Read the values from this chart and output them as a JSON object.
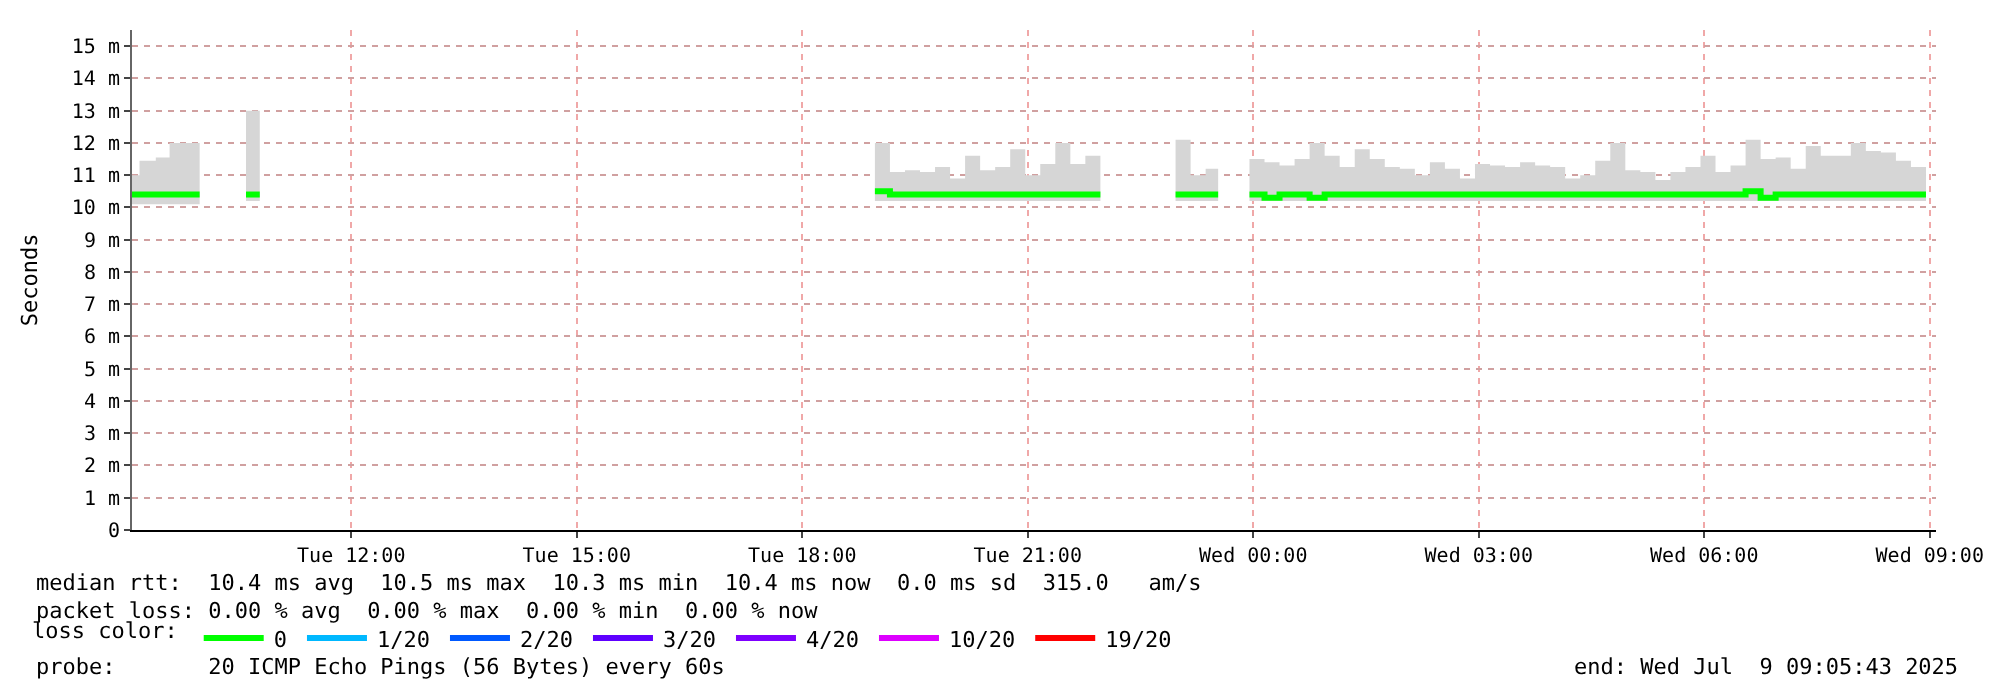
{
  "chart_data": {
    "type": "step",
    "ylabel": "Seconds",
    "x": [
      "2025-07-08T09:05",
      "2025-07-08T09:11",
      "2025-07-08T09:24",
      "2025-07-08T09:35",
      "2025-07-08T09:59",
      "2025-07-08T10:20",
      "2025-07-08T10:36",
      "2025-07-08T10:47",
      "2025-07-08T14:00",
      "2025-07-08T18:58",
      "2025-07-08T19:10",
      "2025-07-08T19:22",
      "2025-07-08T19:34",
      "2025-07-08T19:46",
      "2025-07-08T19:58",
      "2025-07-08T20:10",
      "2025-07-08T20:22",
      "2025-07-08T20:34",
      "2025-07-08T20:46",
      "2025-07-08T20:58",
      "2025-07-08T21:10",
      "2025-07-08T21:22",
      "2025-07-08T21:34",
      "2025-07-08T21:46",
      "2025-07-08T21:58",
      "2025-07-08T22:20",
      "2025-07-08T22:58",
      "2025-07-08T23:10",
      "2025-07-08T23:22",
      "2025-07-08T23:32",
      "2025-07-08T23:45",
      "2025-07-08T23:57",
      "2025-07-09T00:09",
      "2025-07-09T00:21",
      "2025-07-09T00:33",
      "2025-07-09T00:45",
      "2025-07-09T00:57",
      "2025-07-09T01:09",
      "2025-07-09T01:21",
      "2025-07-09T01:33",
      "2025-07-09T01:45",
      "2025-07-09T01:57",
      "2025-07-09T02:09",
      "2025-07-09T02:21",
      "2025-07-09T02:33",
      "2025-07-09T02:45",
      "2025-07-09T02:57",
      "2025-07-09T03:09",
      "2025-07-09T03:21",
      "2025-07-09T03:33",
      "2025-07-09T03:45",
      "2025-07-09T03:57",
      "2025-07-09T04:09",
      "2025-07-09T04:21",
      "2025-07-09T04:33",
      "2025-07-09T04:45",
      "2025-07-09T04:57",
      "2025-07-09T05:09",
      "2025-07-09T05:21",
      "2025-07-09T05:33",
      "2025-07-09T05:45",
      "2025-07-09T05:57",
      "2025-07-09T06:09",
      "2025-07-09T06:21",
      "2025-07-09T06:33",
      "2025-07-09T06:45",
      "2025-07-09T06:57",
      "2025-07-09T07:09",
      "2025-07-09T07:21",
      "2025-07-09T07:33",
      "2025-07-09T07:45",
      "2025-07-09T07:57",
      "2025-07-09T08:09",
      "2025-07-09T08:21",
      "2025-07-09T08:33",
      "2025-07-09T08:45",
      "2025-07-09T08:57"
    ],
    "series": [
      {
        "name": "0",
        "color": "#00ff00",
        "values": [
          10.4,
          10.4,
          10.4,
          10.4,
          10.4,
          null,
          10.4,
          10.4,
          null,
          10.5,
          10.4,
          10.4,
          10.4,
          10.4,
          10.4,
          10.4,
          10.4,
          10.4,
          10.4,
          10.4,
          10.4,
          10.4,
          10.4,
          10.4,
          10.4,
          null,
          10.4,
          10.4,
          10.4,
          10.4,
          null,
          10.4,
          10.3,
          10.4,
          10.4,
          10.3,
          10.4,
          10.4,
          10.4,
          10.4,
          10.4,
          10.4,
          10.4,
          10.4,
          10.4,
          10.4,
          10.4,
          10.4,
          10.4,
          10.4,
          10.4,
          10.4,
          10.4,
          10.4,
          10.4,
          10.4,
          10.4,
          10.4,
          10.4,
          10.4,
          10.4,
          10.4,
          10.4,
          10.4,
          10.5,
          10.3,
          10.4,
          10.4,
          10.4,
          10.4,
          10.4,
          10.4,
          10.4,
          10.4,
          10.4,
          10.4,
          10.4
        ],
        "lower": [
          10.1,
          10.1,
          10.1,
          10.1,
          10.1,
          null,
          10.2,
          10.2,
          null,
          10.2,
          10.2,
          10.2,
          10.2,
          10.2,
          10.2,
          10.2,
          10.2,
          10.2,
          10.2,
          10.2,
          10.2,
          10.2,
          10.2,
          10.2,
          10.2,
          null,
          10.2,
          10.2,
          10.2,
          10.2,
          null,
          10.2,
          10.2,
          10.2,
          10.2,
          10.2,
          10.2,
          10.2,
          10.2,
          10.2,
          10.2,
          10.2,
          10.2,
          10.2,
          10.2,
          10.2,
          10.2,
          10.2,
          10.2,
          10.2,
          10.2,
          10.2,
          10.2,
          10.2,
          10.2,
          10.2,
          10.2,
          10.2,
          10.2,
          10.2,
          10.2,
          10.2,
          10.2,
          10.2,
          10.2,
          10.2,
          10.2,
          10.2,
          10.2,
          10.2,
          10.2,
          10.2,
          10.2,
          10.2,
          10.2,
          10.2,
          10.2
        ],
        "upper": [
          11.0,
          11.45,
          11.55,
          12.0,
          12.0,
          null,
          13.0,
          13.0,
          null,
          12.0,
          11.1,
          11.15,
          11.1,
          11.25,
          10.9,
          11.6,
          11.15,
          11.25,
          11.8,
          11.0,
          11.35,
          12.0,
          11.35,
          11.6,
          11.6,
          null,
          12.1,
          11.0,
          11.2,
          11.2,
          null,
          11.5,
          11.4,
          11.3,
          11.5,
          12.0,
          11.6,
          11.25,
          11.8,
          11.5,
          11.25,
          11.2,
          11.0,
          11.4,
          11.2,
          10.9,
          11.35,
          11.3,
          11.25,
          11.4,
          11.3,
          11.25,
          10.9,
          11.0,
          11.45,
          12.0,
          11.15,
          11.1,
          10.85,
          11.1,
          11.25,
          11.6,
          11.1,
          11.3,
          12.1,
          11.5,
          11.55,
          11.2,
          11.9,
          11.6,
          11.6,
          12.0,
          11.75,
          11.7,
          11.45,
          11.25,
          11.25
        ]
      },
      {
        "name": "1/20",
        "color": "#00b8ff",
        "values": [
          null,
          null,
          null,
          null,
          null,
          null,
          null,
          null,
          null,
          null,
          null,
          null,
          null,
          null,
          null,
          null,
          null,
          null,
          null,
          null,
          null,
          null,
          null,
          null,
          null,
          null,
          null,
          null,
          null,
          null,
          null,
          null,
          null,
          null,
          null,
          null,
          null,
          null,
          null,
          null,
          null,
          null,
          null,
          null,
          null,
          null,
          null,
          null,
          null,
          null,
          null,
          null,
          null,
          null,
          null,
          null,
          null,
          null,
          null,
          null,
          null,
          null,
          null,
          null,
          null,
          null,
          null,
          null,
          null,
          null,
          null,
          null,
          null,
          null,
          null,
          null,
          null
        ]
      },
      {
        "name": "2/20",
        "color": "#0059ff",
        "values": [
          null,
          null,
          null,
          null,
          null,
          null,
          null,
          null,
          null,
          null,
          null,
          null,
          null,
          null,
          null,
          null,
          null,
          null,
          null,
          null,
          null,
          null,
          null,
          null,
          null,
          null,
          null,
          null,
          null,
          null,
          null,
          null,
          null,
          null,
          null,
          null,
          null,
          null,
          null,
          null,
          null,
          null,
          null,
          null,
          null,
          null,
          null,
          null,
          null,
          null,
          null,
          null,
          null,
          null,
          null,
          null,
          null,
          null,
          null,
          null,
          null,
          null,
          null,
          null,
          null,
          null,
          null,
          null,
          null,
          null,
          null,
          null,
          null,
          null,
          null,
          null,
          null
        ]
      },
      {
        "name": "3/20",
        "color": "#5e00ff",
        "values": [
          null,
          null,
          null,
          null,
          null,
          null,
          null,
          null,
          null,
          null,
          null,
          null,
          null,
          null,
          null,
          null,
          null,
          null,
          null,
          null,
          null,
          null,
          null,
          null,
          null,
          null,
          null,
          null,
          null,
          null,
          null,
          null,
          null,
          null,
          null,
          null,
          null,
          null,
          null,
          null,
          null,
          null,
          null,
          null,
          null,
          null,
          null,
          null,
          null,
          null,
          null,
          null,
          null,
          null,
          null,
          null,
          null,
          null,
          null,
          null,
          null,
          null,
          null,
          null,
          null,
          null,
          null,
          null,
          null,
          null,
          null,
          null,
          null,
          null,
          null,
          null,
          null
        ]
      },
      {
        "name": "4/20",
        "color": "#7e00ff",
        "values": [
          null,
          null,
          null,
          null,
          null,
          null,
          null,
          null,
          null,
          null,
          null,
          null,
          null,
          null,
          null,
          null,
          null,
          null,
          null,
          null,
          null,
          null,
          null,
          null,
          null,
          null,
          null,
          null,
          null,
          null,
          null,
          null,
          null,
          null,
          null,
          null,
          null,
          null,
          null,
          null,
          null,
          null,
          null,
          null,
          null,
          null,
          null,
          null,
          null,
          null,
          null,
          null,
          null,
          null,
          null,
          null,
          null,
          null,
          null,
          null,
          null,
          null,
          null,
          null,
          null,
          null,
          null,
          null,
          null,
          null,
          null,
          null,
          null,
          null,
          null,
          null,
          null
        ]
      },
      {
        "name": "10/20",
        "color": "#dd00ff",
        "values": [
          null,
          null,
          null,
          null,
          null,
          null,
          null,
          null,
          null,
          null,
          null,
          null,
          null,
          null,
          null,
          null,
          null,
          null,
          null,
          null,
          null,
          null,
          null,
          null,
          null,
          null,
          null,
          null,
          null,
          null,
          null,
          null,
          null,
          null,
          null,
          null,
          null,
          null,
          null,
          null,
          null,
          null,
          null,
          null,
          null,
          null,
          null,
          null,
          null,
          null,
          null,
          null,
          null,
          null,
          null,
          null,
          null,
          null,
          null,
          null,
          null,
          null,
          null,
          null,
          null,
          null,
          null,
          null,
          null,
          null,
          null,
          null,
          null,
          null,
          null,
          null,
          null
        ]
      },
      {
        "name": "19/20",
        "color": "#ff0000",
        "values": [
          null,
          null,
          null,
          null,
          null,
          null,
          null,
          null,
          null,
          null,
          null,
          null,
          null,
          null,
          null,
          null,
          null,
          null,
          null,
          null,
          null,
          null,
          null,
          null,
          null,
          null,
          null,
          null,
          null,
          null,
          null,
          null,
          null,
          null,
          null,
          null,
          null,
          null,
          null,
          null,
          null,
          null,
          null,
          null,
          null,
          null,
          null,
          null,
          null,
          null,
          null,
          null,
          null,
          null,
          null,
          null,
          null,
          null,
          null,
          null,
          null,
          null,
          null,
          null,
          null,
          null,
          null,
          null,
          null,
          null,
          null,
          null,
          null,
          null,
          null,
          null,
          null
        ]
      }
    ],
    "xlim": [
      "2025-07-08T09:05",
      "2025-07-09T09:05"
    ],
    "xticks": [
      {
        "value": "2025-07-08T12:00",
        "label": "Tue 12:00"
      },
      {
        "value": "2025-07-08T15:00",
        "label": "Tue 15:00"
      },
      {
        "value": "2025-07-08T18:00",
        "label": "Tue 18:00"
      },
      {
        "value": "2025-07-08T21:00",
        "label": "Tue 21:00"
      },
      {
        "value": "2025-07-09T00:00",
        "label": "Wed 00:00"
      },
      {
        "value": "2025-07-09T03:00",
        "label": "Wed 03:00"
      },
      {
        "value": "2025-07-09T06:00",
        "label": "Wed 06:00"
      },
      {
        "value": "2025-07-09T09:00",
        "label": "Wed 09:00"
      }
    ],
    "ylim": [
      0,
      15.5
    ],
    "yticks": [
      0,
      {
        "value": 1,
        "label": "1 m"
      },
      {
        "value": 2,
        "label": "2 m"
      },
      {
        "value": 3,
        "label": "3 m"
      },
      {
        "value": 4,
        "label": "4 m"
      },
      {
        "value": 5,
        "label": "5 m"
      },
      {
        "value": 6,
        "label": "6 m"
      },
      {
        "value": 7,
        "label": "7 m"
      },
      {
        "value": 8,
        "label": "8 m"
      },
      {
        "value": 9,
        "label": "9 m"
      },
      {
        "value": 10,
        "label": "10 m"
      },
      {
        "value": 11,
        "label": "11 m"
      },
      {
        "value": 12,
        "label": "12 m"
      },
      {
        "value": 13,
        "label": "13 m"
      },
      {
        "value": 14,
        "label": "14 m"
      },
      {
        "value": 15,
        "label": "15 m"
      }
    ],
    "grid": true,
    "legend": "bottom",
    "legend_title": "loss color:",
    "annotations": [
      "median rtt:  10.4 ms avg  10.5 ms max  10.3 ms min  10.4 ms now  0.0 ms sd  315.0   am/s",
      "packet loss: 0.00 % avg  0.00 % max  0.00 % min  0.00 % now",
      "probe:       20 ICMP Echo Pings (56 Bytes) every 60s",
      "end: Wed Jul  9 09:05:43 2025"
    ]
  }
}
